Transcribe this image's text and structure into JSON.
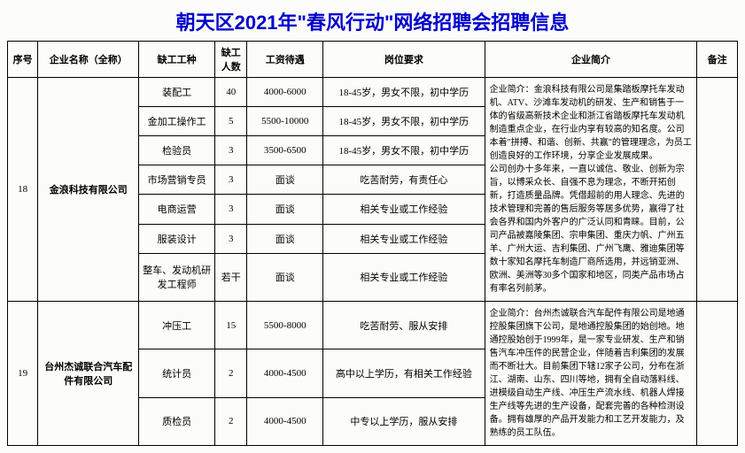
{
  "page_title": "朝天区2021年\"春风行动\"网络招聘会招聘信息",
  "styling": {
    "title_color": "#0000cc",
    "title_fontsize": 22,
    "border_color": "#000000",
    "background_color": "#fcfcfa",
    "cell_fontsize": 11,
    "intro_fontsize": 10
  },
  "columns": {
    "seq": "序号",
    "company": "企业名称（全称）",
    "job": "缺工工种",
    "count": "缺工人数",
    "salary": "工资待遇",
    "req": "岗位要求",
    "intro": "企业简介",
    "note": "备注"
  },
  "companies": [
    {
      "seq": "18",
      "name": "金浪科技有限公司",
      "intro": "企业简介：金浪科技有限公司是集踏板摩托车发动机、ATV、沙滩车发动机的研发、生产和销售于一体的省级高新技术企业和浙江省踏板摩托车发动机制造重点企业，在行业内享有较高的知名度。公司本着\"拼搏、和谐、创新、共赢\"的管理理念，为员工创造良好的工作环境，分享企业发展成果。\n公司创办十多年来，一直以诚信、敬业、创新为宗旨，以博采众长、自强不息为理念，不断开拓创新，打造质量品牌。凭借超前的用人理念、先进的技术管理和完善的售后服务等居多优势，赢得了社会各界和国内外客户的广泛认同和青睐。目前，公司产品被嘉陵集团、宗申集团、重庆力帆、广州五羊、广州大运、吉利集团、广州飞鹰、雅迪集团等数十家知名摩托车制造厂商所选用，并远销亚洲、欧洲、美洲等30多个国家和地区，同类产品市场占有率名列前茅。",
      "jobs": [
        {
          "job": "装配工",
          "count": "40",
          "salary": "4000-6000",
          "req": "18-45岁，男女不限，初中学历"
        },
        {
          "job": "金加工操作工",
          "count": "5",
          "salary": "5500-10000",
          "req": "18-45岁，男女不限，初中学历"
        },
        {
          "job": "检验员",
          "count": "3",
          "salary": "3500-6500",
          "req": "18-45岁，男女不限，初中学历"
        },
        {
          "job": "市场营销专员",
          "count": "3",
          "salary": "面谈",
          "req": "吃苦耐劳，有责任心"
        },
        {
          "job": "电商运营",
          "count": "3",
          "salary": "面谈",
          "req": "相关专业或工作经验"
        },
        {
          "job": "服装设计",
          "count": "3",
          "salary": "面谈",
          "req": "相关专业或工作经验"
        },
        {
          "job": "整车、发动机研发工程师",
          "count": "若干",
          "salary": "面谈",
          "req": "相关专业或工作经验"
        }
      ],
      "note": ""
    },
    {
      "seq": "19",
      "name": "台州杰诚联合汽车配件有限公司",
      "intro": "企业简介：台州杰诚联合汽车配件有限公司是地通控股集团旗下公司，是地通控股集团的始创地。地通控股始创于1999年，是一家专业研发、生产和销售汽车冲压件的民营企业，伴随着吉利集团的发展而不断壮大。目前集团下辖12家子公司，分布在浙江、湖南、山东、四川等地，拥有全自动落料线、进模级自动生产线、冲压生产流水线、机器人焊接生产线等先进的生产设备，配套完善的各种检测设备。拥有雄厚的产品开发能力和工艺开发能力，及熟练的员工队伍。",
      "jobs": [
        {
          "job": "冲压工",
          "count": "15",
          "salary": "5500-8000",
          "req": "吃苦耐劳、服从安排"
        },
        {
          "job": "统计员",
          "count": "2",
          "salary": "4000-4500",
          "req": "高中以上学历，有相关工作经验"
        },
        {
          "job": "质检员",
          "count": "2",
          "salary": "4000-4500",
          "req": "中专以上学历，服从安排"
        }
      ],
      "note": ""
    }
  ]
}
